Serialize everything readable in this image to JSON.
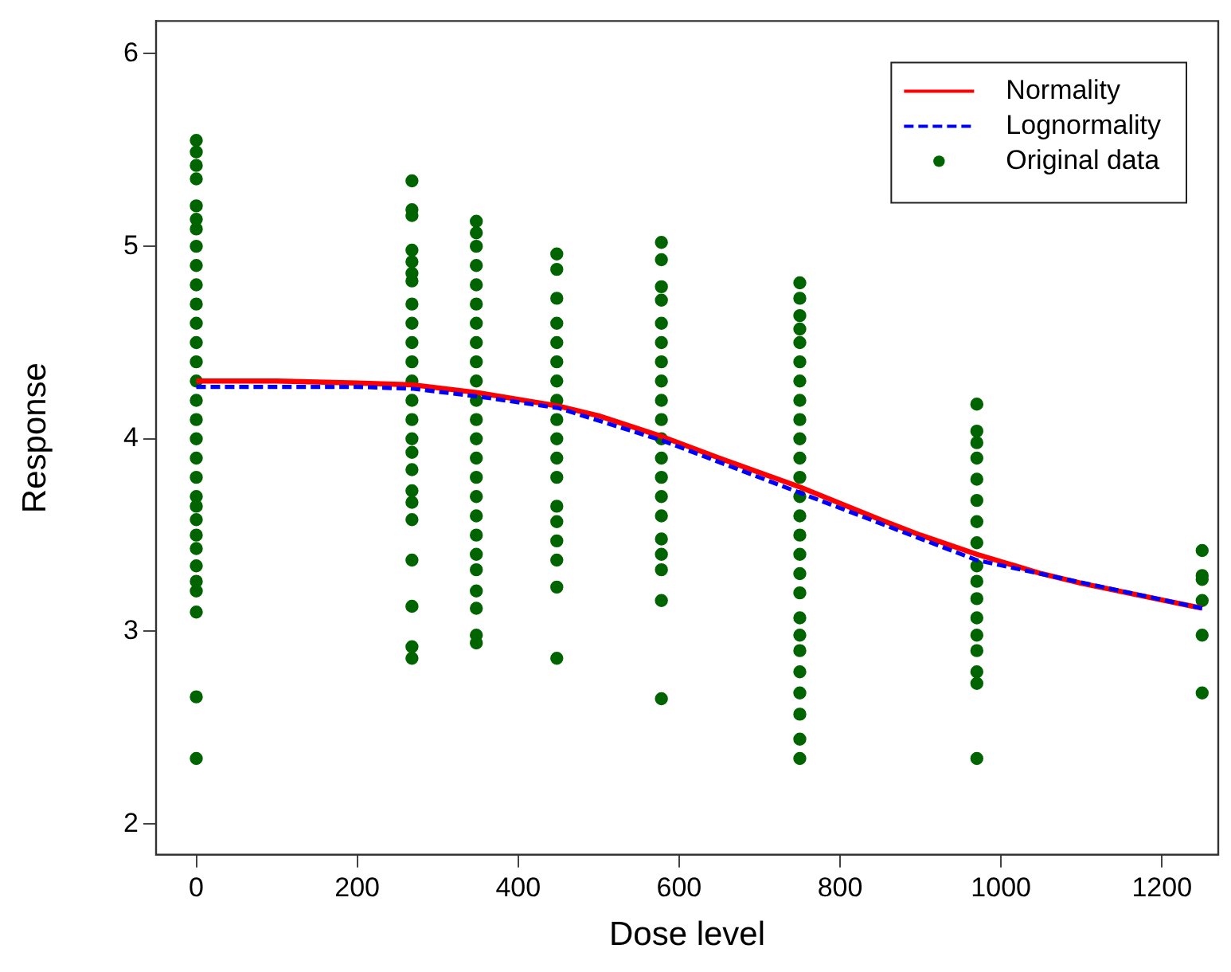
{
  "chart_data": {
    "type": "scatter",
    "xlabel": "Dose level",
    "ylabel": "Response",
    "xlim": [
      -50,
      1270
    ],
    "ylim": [
      1.84,
      6.17
    ],
    "xticks": [
      0,
      200,
      400,
      600,
      800,
      1000,
      1200
    ],
    "yticks": [
      2,
      3,
      4,
      5,
      6
    ],
    "grid": false,
    "legend": "top right",
    "series": [
      {
        "name": "Normality",
        "type": "line",
        "color": "#ff0000",
        "line_style": "solid",
        "marker": "none",
        "x": [
          0,
          100,
          200,
          270,
          350,
          450,
          500,
          580,
          650,
          750,
          850,
          900,
          970,
          1050,
          1100,
          1180,
          1250
        ],
        "values": [
          4.3,
          4.3,
          4.29,
          4.28,
          4.24,
          4.17,
          4.12,
          4.01,
          3.9,
          3.75,
          3.58,
          3.5,
          3.4,
          3.3,
          3.25,
          3.18,
          3.12
        ]
      },
      {
        "name": "Lognormality",
        "type": "line",
        "color": "#0000ff",
        "line_style": "dashed",
        "marker": "none",
        "x": [
          0,
          200,
          270,
          350,
          450,
          580,
          750,
          970,
          1250
        ],
        "values": [
          4.27,
          4.27,
          4.26,
          4.22,
          4.16,
          3.99,
          3.72,
          3.37,
          3.12
        ]
      },
      {
        "name": "Original data",
        "type": "scatter",
        "color": "#006400",
        "marker": "circle",
        "x": [
          0,
          0,
          0,
          0,
          0,
          0,
          0,
          0,
          0,
          0,
          0,
          0,
          0,
          0,
          0,
          0,
          0,
          0,
          0,
          0,
          0,
          0,
          0,
          0,
          0,
          0,
          0,
          0,
          0,
          0,
          0,
          268,
          268,
          268,
          268,
          268,
          268,
          268,
          268,
          268,
          268,
          268,
          268,
          268,
          268,
          268,
          268,
          268,
          268,
          268,
          268,
          268,
          268,
          268,
          268,
          348,
          348,
          348,
          348,
          348,
          348,
          348,
          348,
          348,
          348,
          348,
          348,
          348,
          348,
          348,
          348,
          348,
          348,
          348,
          348,
          348,
          348,
          348,
          348,
          448,
          448,
          448,
          448,
          448,
          448,
          448,
          448,
          448,
          448,
          448,
          448,
          448,
          448,
          448,
          448,
          448,
          448,
          578,
          578,
          578,
          578,
          578,
          578,
          578,
          578,
          578,
          578,
          578,
          578,
          578,
          578,
          578,
          578,
          578,
          578,
          578,
          578,
          750,
          750,
          750,
          750,
          750,
          750,
          750,
          750,
          750,
          750,
          750,
          750,
          750,
          750,
          750,
          750,
          750,
          750,
          750,
          750,
          750,
          750,
          750,
          750,
          750,
          750,
          970,
          970,
          970,
          970,
          970,
          970,
          970,
          970,
          970,
          970,
          970,
          970,
          970,
          970,
          970,
          970,
          970,
          1250,
          1250,
          1250,
          1250,
          1250,
          1250
        ],
        "values": [
          5.55,
          5.49,
          5.42,
          5.35,
          5.21,
          5.14,
          5.09,
          5.0,
          4.9,
          4.8,
          4.7,
          4.6,
          4.5,
          4.4,
          4.3,
          4.2,
          4.1,
          4.0,
          3.9,
          3.8,
          3.7,
          3.65,
          3.58,
          3.5,
          3.43,
          3.34,
          3.26,
          3.21,
          3.1,
          2.66,
          2.34,
          5.34,
          5.19,
          5.16,
          4.98,
          4.92,
          4.86,
          4.82,
          4.7,
          4.6,
          4.5,
          4.4,
          4.3,
          4.2,
          4.1,
          4.0,
          3.93,
          3.84,
          3.73,
          3.67,
          3.58,
          3.37,
          3.13,
          2.92,
          2.86,
          5.13,
          5.07,
          5.0,
          4.9,
          4.8,
          4.7,
          4.6,
          4.5,
          4.4,
          4.3,
          4.2,
          4.1,
          4.0,
          3.9,
          3.8,
          3.7,
          3.6,
          3.5,
          3.4,
          3.32,
          3.21,
          3.12,
          2.98,
          2.94,
          4.96,
          4.88,
          4.73,
          4.6,
          4.5,
          4.4,
          4.3,
          4.2,
          4.1,
          4.0,
          3.9,
          3.8,
          3.65,
          3.57,
          3.47,
          3.37,
          3.23,
          2.86,
          5.02,
          4.93,
          4.79,
          4.72,
          4.6,
          4.5,
          4.4,
          4.3,
          4.2,
          4.1,
          4.0,
          3.9,
          3.8,
          3.7,
          3.6,
          3.48,
          3.4,
          3.32,
          3.16,
          2.65,
          4.81,
          4.73,
          4.64,
          4.57,
          4.5,
          4.4,
          4.3,
          4.2,
          4.1,
          4.0,
          3.9,
          3.8,
          3.7,
          3.6,
          3.5,
          3.4,
          3.3,
          3.2,
          3.07,
          2.98,
          2.9,
          2.79,
          2.68,
          2.57,
          2.44,
          2.34,
          4.18,
          4.04,
          3.98,
          3.9,
          3.79,
          3.68,
          3.57,
          3.46,
          3.34,
          3.26,
          3.17,
          3.07,
          2.98,
          2.9,
          2.79,
          2.73,
          2.34,
          3.42,
          3.29,
          3.27,
          3.16,
          2.98,
          2.68
        ]
      }
    ]
  }
}
